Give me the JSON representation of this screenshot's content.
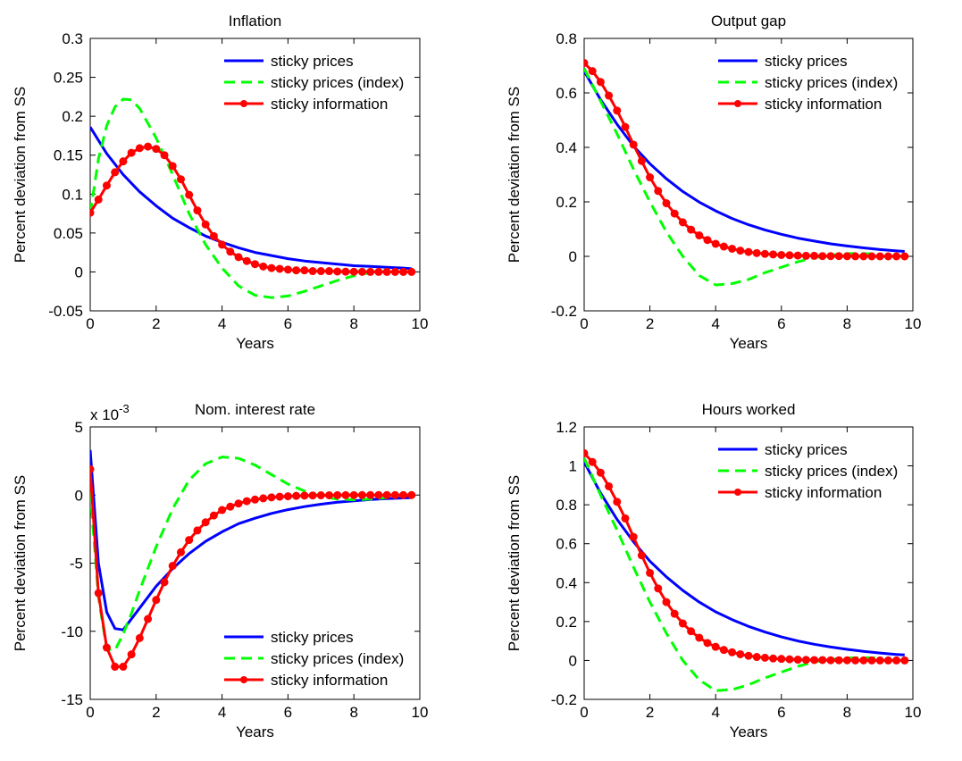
{
  "chart_data": [
    {
      "type": "line",
      "title": "Inflation",
      "xlabel": "Years",
      "ylabel": "Percent deviation from SS",
      "xlim": [
        0,
        10
      ],
      "ylim": [
        -0.05,
        0.3
      ],
      "xticks": [
        0,
        2,
        4,
        6,
        8,
        10
      ],
      "yticks": [
        -0.05,
        0,
        0.05,
        0.1,
        0.15,
        0.2,
        0.25,
        0.3
      ],
      "ytick_labels": [
        "-0.05",
        "0",
        "0.05",
        "0.1",
        "0.15",
        "0.2",
        "0.25",
        "0.3"
      ],
      "exponent_label": "",
      "legend_position": "top-right",
      "grid": false,
      "series": [
        {
          "name": "sticky prices",
          "color": "#0000ff",
          "style": "solid",
          "x": [
            0,
            0.5,
            1,
            1.5,
            2,
            2.5,
            3,
            3.5,
            4,
            4.5,
            5,
            5.5,
            6,
            6.5,
            7,
            7.5,
            8,
            8.5,
            9,
            9.5,
            9.75
          ],
          "y": [
            0.186,
            0.152,
            0.125,
            0.103,
            0.085,
            0.069,
            0.057,
            0.046,
            0.038,
            0.031,
            0.025,
            0.021,
            0.017,
            0.014,
            0.012,
            0.01,
            0.008,
            0.007,
            0.006,
            0.005,
            0.004
          ]
        },
        {
          "name": "sticky prices (index)",
          "color": "#00ff00",
          "style": "dashed",
          "x": [
            0,
            0.25,
            0.5,
            0.75,
            1,
            1.25,
            1.5,
            2,
            2.5,
            3,
            3.5,
            4,
            4.5,
            5,
            5.5,
            6,
            6.5,
            7,
            7.5,
            8,
            8.5,
            9
          ],
          "y": [
            0.075,
            0.145,
            0.188,
            0.212,
            0.222,
            0.221,
            0.21,
            0.172,
            0.125,
            0.075,
            0.035,
            0.005,
            -0.018,
            -0.03,
            -0.033,
            -0.031,
            -0.025,
            -0.018,
            -0.011,
            -0.005,
            -0.001,
            0.001
          ]
        },
        {
          "name": "sticky information",
          "color": "#ff0000",
          "style": "solid-markers",
          "x": [
            0,
            0.25,
            0.5,
            0.75,
            1,
            1.25,
            1.5,
            1.75,
            2,
            2.25,
            2.5,
            2.75,
            3,
            3.25,
            3.5,
            3.75,
            4,
            4.25,
            4.5,
            4.75,
            5,
            5.25,
            5.5,
            5.75,
            6,
            6.25,
            6.5,
            6.75,
            7,
            7.25,
            7.5,
            7.75,
            8,
            8.25,
            8.5,
            8.75,
            9,
            9.25,
            9.5,
            9.75
          ],
          "y": [
            0.076,
            0.093,
            0.111,
            0.128,
            0.142,
            0.153,
            0.159,
            0.161,
            0.158,
            0.15,
            0.136,
            0.119,
            0.099,
            0.079,
            0.061,
            0.046,
            0.035,
            0.026,
            0.019,
            0.014,
            0.01,
            0.007,
            0.005,
            0.004,
            0.003,
            0.002,
            0.002,
            0.001,
            0.001,
            0.001,
            0.0005,
            0.0003,
            0.0002,
            0.0001,
            0,
            0,
            0,
            0,
            0,
            0
          ]
        }
      ]
    },
    {
      "type": "line",
      "title": "Output gap",
      "xlabel": "Years",
      "ylabel": "Percent deviation from SS",
      "xlim": [
        0,
        10
      ],
      "ylim": [
        -0.2,
        0.8
      ],
      "xticks": [
        0,
        2,
        4,
        6,
        8,
        10
      ],
      "yticks": [
        -0.2,
        0,
        0.2,
        0.4,
        0.6,
        0.8
      ],
      "ytick_labels": [
        "-0.2",
        "0",
        "0.2",
        "0.4",
        "0.6",
        "0.8"
      ],
      "exponent_label": "",
      "legend_position": "top-right",
      "grid": false,
      "series": [
        {
          "name": "sticky prices",
          "color": "#0000ff",
          "style": "solid",
          "x": [
            0,
            0.5,
            1,
            1.5,
            2,
            2.5,
            3,
            3.5,
            4,
            4.5,
            5,
            5.5,
            6,
            6.5,
            7,
            7.5,
            8,
            8.5,
            9,
            9.5,
            9.75
          ],
          "y": [
            0.68,
            0.575,
            0.485,
            0.405,
            0.34,
            0.285,
            0.238,
            0.199,
            0.167,
            0.139,
            0.116,
            0.097,
            0.081,
            0.067,
            0.056,
            0.046,
            0.038,
            0.031,
            0.025,
            0.02,
            0.018
          ]
        },
        {
          "name": "sticky prices (index)",
          "color": "#00ff00",
          "style": "dashed",
          "x": [
            0,
            0.5,
            1,
            1.5,
            2,
            2.5,
            3,
            3.5,
            4,
            4.5,
            5,
            5.5,
            6,
            6.5,
            7,
            7.5,
            8,
            8.5,
            9
          ],
          "y": [
            0.69,
            0.57,
            0.45,
            0.32,
            0.2,
            0.09,
            0.0,
            -0.07,
            -0.105,
            -0.1,
            -0.085,
            -0.06,
            -0.04,
            -0.02,
            -0.005,
            0.005,
            0.01,
            0.01,
            0.008
          ]
        },
        {
          "name": "sticky information",
          "color": "#ff0000",
          "style": "solid-markers",
          "x": [
            0,
            0.25,
            0.5,
            0.75,
            1,
            1.25,
            1.5,
            1.75,
            2,
            2.25,
            2.5,
            2.75,
            3,
            3.25,
            3.5,
            3.75,
            4,
            4.25,
            4.5,
            4.75,
            5,
            5.25,
            5.5,
            5.75,
            6,
            6.25,
            6.5,
            6.75,
            7,
            7.25,
            7.5,
            7.75,
            8,
            8.25,
            8.5,
            8.75,
            9,
            9.25,
            9.5,
            9.75
          ],
          "y": [
            0.71,
            0.68,
            0.64,
            0.59,
            0.535,
            0.475,
            0.41,
            0.35,
            0.29,
            0.24,
            0.195,
            0.157,
            0.125,
            0.098,
            0.077,
            0.06,
            0.046,
            0.036,
            0.028,
            0.021,
            0.016,
            0.012,
            0.009,
            0.007,
            0.005,
            0.004,
            0.003,
            0.002,
            0.002,
            0.001,
            0.001,
            0.001,
            0.0005,
            0.0003,
            0.0002,
            0,
            0,
            0,
            0,
            0
          ]
        }
      ]
    },
    {
      "type": "line",
      "title": "Nom. interest rate",
      "xlabel": "Years",
      "ylabel": "Percent deviation from SS",
      "xlim": [
        0,
        10
      ],
      "ylim": [
        -15,
        5
      ],
      "xticks": [
        0,
        2,
        4,
        6,
        8,
        10
      ],
      "yticks": [
        -15,
        -10,
        -5,
        0,
        5
      ],
      "ytick_labels": [
        "-15",
        "-10",
        "-5",
        "0",
        "5"
      ],
      "exponent_label": "x 10",
      "exponent_power": "-3",
      "legend_position": "bottom-right",
      "grid": false,
      "series": [
        {
          "name": "sticky prices",
          "color": "#0000ff",
          "style": "solid",
          "x": [
            0,
            0.25,
            0.5,
            0.75,
            1,
            1.5,
            2,
            2.5,
            3,
            3.5,
            4,
            4.5,
            5,
            5.5,
            6,
            6.5,
            7,
            7.5,
            8,
            8.5,
            9,
            9.5,
            9.75
          ],
          "y": [
            3.3,
            -5.0,
            -8.6,
            -9.8,
            -9.9,
            -8.3,
            -6.7,
            -5.4,
            -4.3,
            -3.4,
            -2.7,
            -2.1,
            -1.7,
            -1.35,
            -1.07,
            -0.85,
            -0.67,
            -0.53,
            -0.42,
            -0.33,
            -0.26,
            -0.21,
            -0.19
          ]
        },
        {
          "name": "sticky prices (index)",
          "color": "#00ff00",
          "style": "dashed",
          "x": [
            0,
            0.25,
            0.5,
            0.75,
            1,
            1.25,
            1.5,
            2,
            2.5,
            3,
            3.5,
            4,
            4.5,
            5,
            5.5,
            6,
            6.5,
            7,
            7.5,
            8,
            8.5,
            9
          ],
          "y": [
            0.3,
            -7.5,
            -11.3,
            -11.4,
            -10.2,
            -8.7,
            -7.0,
            -3.8,
            -1.0,
            1.1,
            2.3,
            2.8,
            2.7,
            2.2,
            1.5,
            0.8,
            0.3,
            -0.1,
            -0.3,
            -0.35,
            -0.3,
            -0.2
          ]
        },
        {
          "name": "sticky information",
          "color": "#ff0000",
          "style": "solid-markers",
          "x": [
            0,
            0.25,
            0.5,
            0.75,
            1,
            1.25,
            1.5,
            1.75,
            2,
            2.25,
            2.5,
            2.75,
            3,
            3.25,
            3.5,
            3.75,
            4,
            4.25,
            4.5,
            4.75,
            5,
            5.25,
            5.5,
            5.75,
            6,
            6.25,
            6.5,
            6.75,
            7,
            7.25,
            7.5,
            7.75,
            8,
            8.25,
            8.5,
            8.75,
            9,
            9.25,
            9.5,
            9.75
          ],
          "y": [
            1.9,
            -7.2,
            -11.2,
            -12.6,
            -12.6,
            -11.7,
            -10.5,
            -9.1,
            -7.7,
            -6.4,
            -5.2,
            -4.2,
            -3.3,
            -2.6,
            -2.0,
            -1.5,
            -1.1,
            -0.85,
            -0.62,
            -0.45,
            -0.33,
            -0.24,
            -0.17,
            -0.12,
            -0.09,
            -0.06,
            -0.04,
            -0.03,
            -0.02,
            -0.015,
            -0.01,
            -0.008,
            -0.005,
            -0.004,
            -0.003,
            -0.002,
            -0.001,
            0,
            0,
            0
          ]
        }
      ]
    },
    {
      "type": "line",
      "title": "Hours worked",
      "xlabel": "Years",
      "ylabel": "Percent deviation from SS",
      "xlim": [
        0,
        10
      ],
      "ylim": [
        -0.2,
        1.2
      ],
      "xticks": [
        0,
        2,
        4,
        6,
        8,
        10
      ],
      "yticks": [
        -0.2,
        0,
        0.2,
        0.4,
        0.6,
        0.8,
        1,
        1.2
      ],
      "ytick_labels": [
        "-0.2",
        "0",
        "0.2",
        "0.4",
        "0.6",
        "0.8",
        "1",
        "1.2"
      ],
      "exponent_label": "",
      "legend_position": "top-right",
      "grid": false,
      "series": [
        {
          "name": "sticky prices",
          "color": "#0000ff",
          "style": "solid",
          "x": [
            0,
            0.5,
            1,
            1.5,
            2,
            2.5,
            3,
            3.5,
            4,
            4.5,
            5,
            5.5,
            6,
            6.5,
            7,
            7.5,
            8,
            8.5,
            9,
            9.5,
            9.75
          ],
          "y": [
            1.02,
            0.86,
            0.725,
            0.61,
            0.51,
            0.43,
            0.36,
            0.3,
            0.25,
            0.21,
            0.175,
            0.146,
            0.121,
            0.1,
            0.083,
            0.069,
            0.057,
            0.047,
            0.038,
            0.031,
            0.028
          ]
        },
        {
          "name": "sticky prices (index)",
          "color": "#00ff00",
          "style": "dashed",
          "x": [
            0,
            0.5,
            1,
            1.5,
            2,
            2.5,
            3,
            3.5,
            4,
            4.5,
            5,
            5.5,
            6,
            6.5,
            7,
            7.5,
            8,
            8.5,
            9
          ],
          "y": [
            1.04,
            0.85,
            0.67,
            0.48,
            0.3,
            0.14,
            0.0,
            -0.1,
            -0.155,
            -0.15,
            -0.125,
            -0.09,
            -0.06,
            -0.03,
            -0.008,
            0.006,
            0.013,
            0.014,
            0.012
          ]
        },
        {
          "name": "sticky information",
          "color": "#ff0000",
          "style": "solid-markers",
          "x": [
            0,
            0.25,
            0.5,
            0.75,
            1,
            1.25,
            1.5,
            1.75,
            2,
            2.25,
            2.5,
            2.75,
            3,
            3.25,
            3.5,
            3.75,
            4,
            4.25,
            4.5,
            4.75,
            5,
            5.25,
            5.5,
            5.75,
            6,
            6.25,
            6.5,
            6.75,
            7,
            7.25,
            7.5,
            7.75,
            8,
            8.25,
            8.5,
            8.75,
            9,
            9.25,
            9.5,
            9.75
          ],
          "y": [
            1.065,
            1.02,
            0.965,
            0.895,
            0.815,
            0.73,
            0.635,
            0.54,
            0.45,
            0.37,
            0.3,
            0.24,
            0.19,
            0.15,
            0.117,
            0.09,
            0.07,
            0.054,
            0.042,
            0.032,
            0.024,
            0.018,
            0.014,
            0.01,
            0.008,
            0.006,
            0.004,
            0.003,
            0.002,
            0.002,
            0.001,
            0.001,
            0.0008,
            0.0005,
            0.0003,
            0.0002,
            0,
            0,
            0,
            0
          ]
        }
      ]
    }
  ]
}
